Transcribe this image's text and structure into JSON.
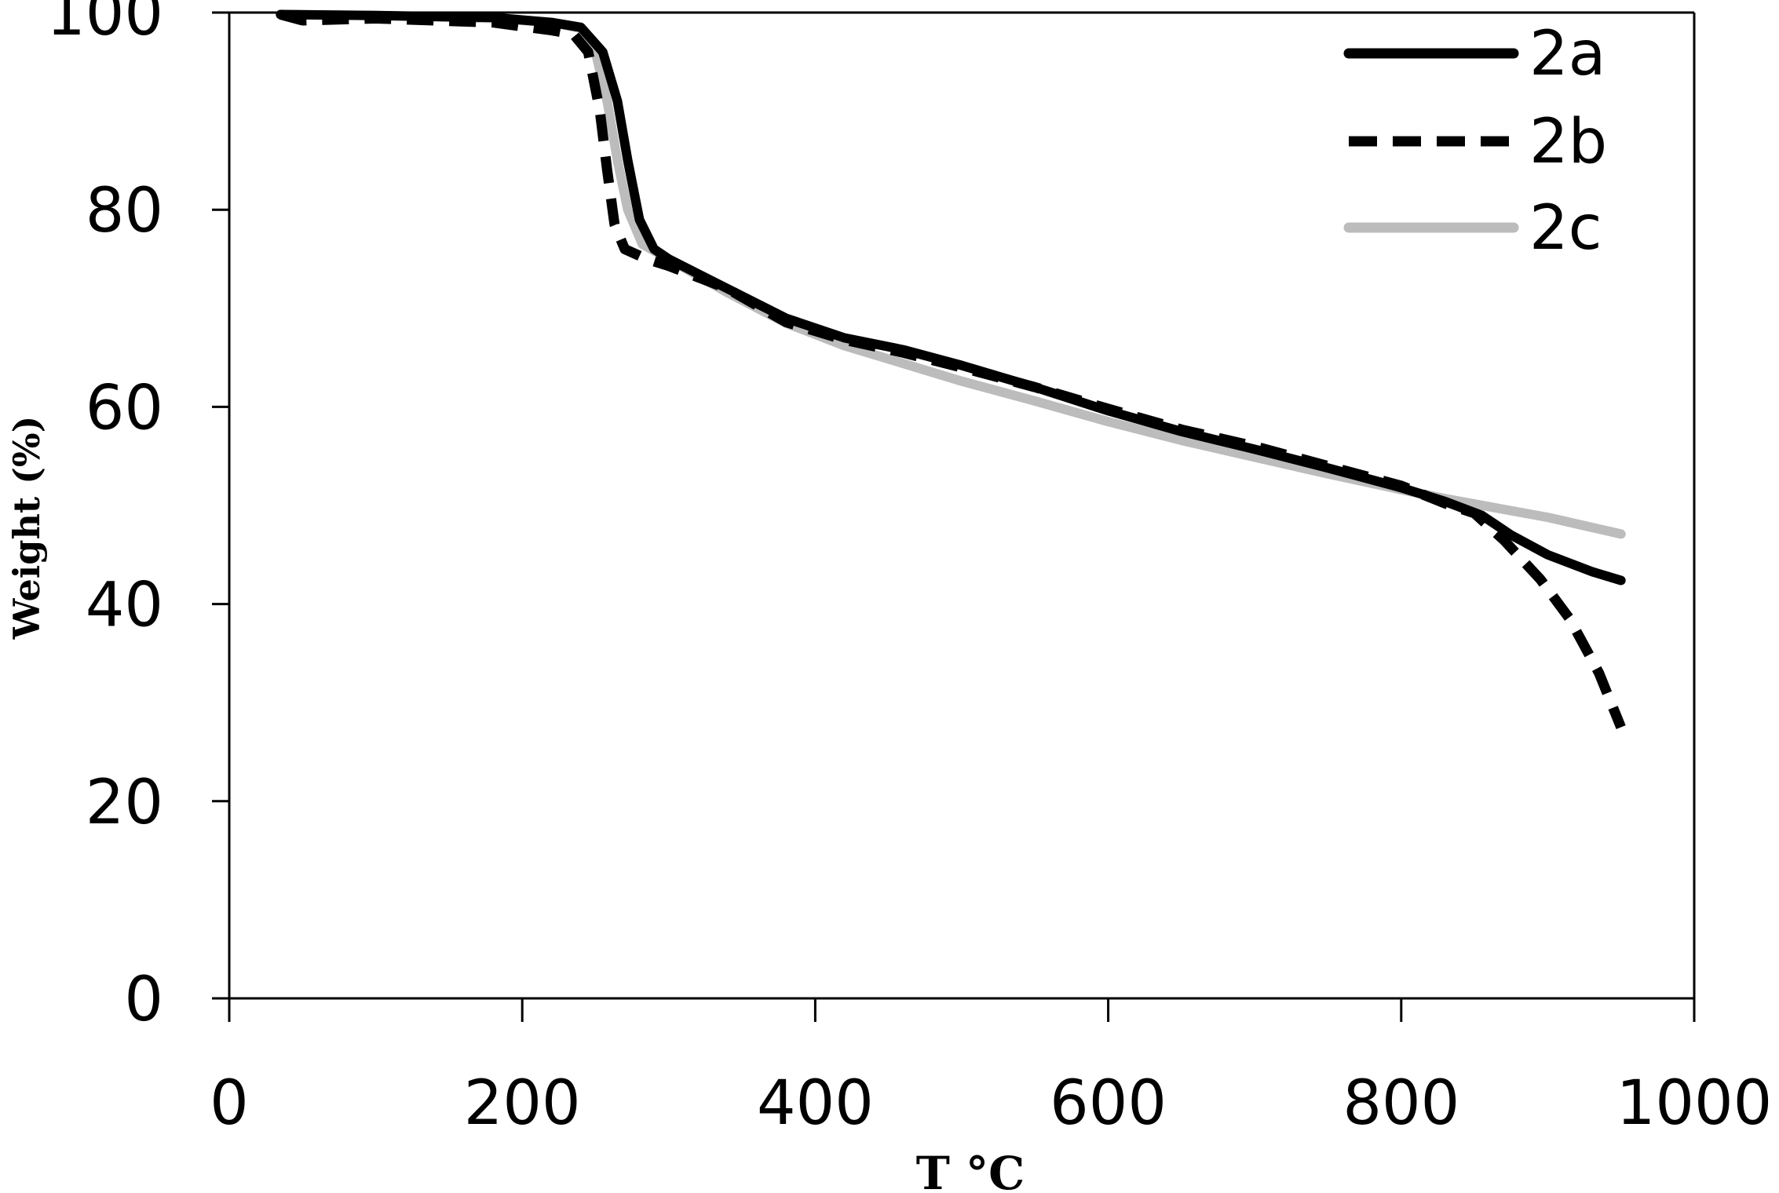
{
  "chart_data": {
    "type": "line",
    "title": "",
    "xlabel": "T °C",
    "ylabel": "Weight (%)",
    "xlim": [
      0,
      1000
    ],
    "ylim": [
      0,
      100
    ],
    "x_ticks": [
      "0",
      "200",
      "400",
      "600",
      "800",
      "1000"
    ],
    "y_ticks": [
      "0",
      "20",
      "40",
      "60",
      "80",
      "100"
    ],
    "grid": false,
    "legend_position": "top-right",
    "series": [
      {
        "name": "2a",
        "color": "#000000",
        "style": "solid",
        "points": [
          [
            35,
            99.8
          ],
          [
            100,
            99.7
          ],
          [
            180,
            99.5
          ],
          [
            220,
            99.0
          ],
          [
            240,
            98.5
          ],
          [
            255,
            96
          ],
          [
            265,
            91
          ],
          [
            272,
            85
          ],
          [
            280,
            79
          ],
          [
            290,
            76
          ],
          [
            300,
            75
          ],
          [
            340,
            72
          ],
          [
            380,
            69
          ],
          [
            420,
            67
          ],
          [
            460,
            65.8
          ],
          [
            500,
            64.2
          ],
          [
            550,
            62
          ],
          [
            600,
            59.6
          ],
          [
            650,
            57.5
          ],
          [
            700,
            55.7
          ],
          [
            750,
            53.8
          ],
          [
            800,
            51.8
          ],
          [
            830,
            50.4
          ],
          [
            855,
            49
          ],
          [
            875,
            47
          ],
          [
            900,
            45
          ],
          [
            930,
            43.3
          ],
          [
            950,
            42.4
          ]
        ]
      },
      {
        "name": "2b",
        "color": "#000000",
        "style": "dashed",
        "points": [
          [
            35,
            99.8
          ],
          [
            50,
            99.2
          ],
          [
            100,
            99.4
          ],
          [
            180,
            99.0
          ],
          [
            220,
            98.2
          ],
          [
            235,
            97.8
          ],
          [
            245,
            96
          ],
          [
            253,
            90
          ],
          [
            258,
            84
          ],
          [
            263,
            78.5
          ],
          [
            270,
            76
          ],
          [
            285,
            75
          ],
          [
            300,
            74.3
          ],
          [
            340,
            72
          ],
          [
            380,
            68.6
          ],
          [
            420,
            66.8
          ],
          [
            460,
            65.5
          ],
          [
            500,
            64
          ],
          [
            550,
            62
          ],
          [
            600,
            59.8
          ],
          [
            650,
            57.7
          ],
          [
            700,
            56
          ],
          [
            750,
            54
          ],
          [
            800,
            52
          ],
          [
            830,
            50.2
          ],
          [
            850,
            49.2
          ],
          [
            870,
            46.5
          ],
          [
            895,
            42.5
          ],
          [
            915,
            38.5
          ],
          [
            935,
            33
          ],
          [
            950,
            27.5
          ]
        ]
      },
      {
        "name": "2c",
        "color": "#bcbcbc",
        "style": "solid",
        "points": [
          [
            35,
            99.8
          ],
          [
            100,
            99.7
          ],
          [
            180,
            99.4
          ],
          [
            220,
            99.0
          ],
          [
            240,
            98.4
          ],
          [
            250,
            96
          ],
          [
            258,
            91
          ],
          [
            265,
            85
          ],
          [
            272,
            80
          ],
          [
            282,
            76.5
          ],
          [
            300,
            75
          ],
          [
            340,
            71.6
          ],
          [
            380,
            68.5
          ],
          [
            420,
            66.2
          ],
          [
            460,
            64.4
          ],
          [
            500,
            62.6
          ],
          [
            550,
            60.6
          ],
          [
            600,
            58.5
          ],
          [
            650,
            56.6
          ],
          [
            700,
            54.9
          ],
          [
            750,
            53.2
          ],
          [
            800,
            51.6
          ],
          [
            830,
            50.7
          ],
          [
            870,
            49.6
          ],
          [
            900,
            48.8
          ],
          [
            950,
            47.1
          ]
        ]
      }
    ]
  }
}
